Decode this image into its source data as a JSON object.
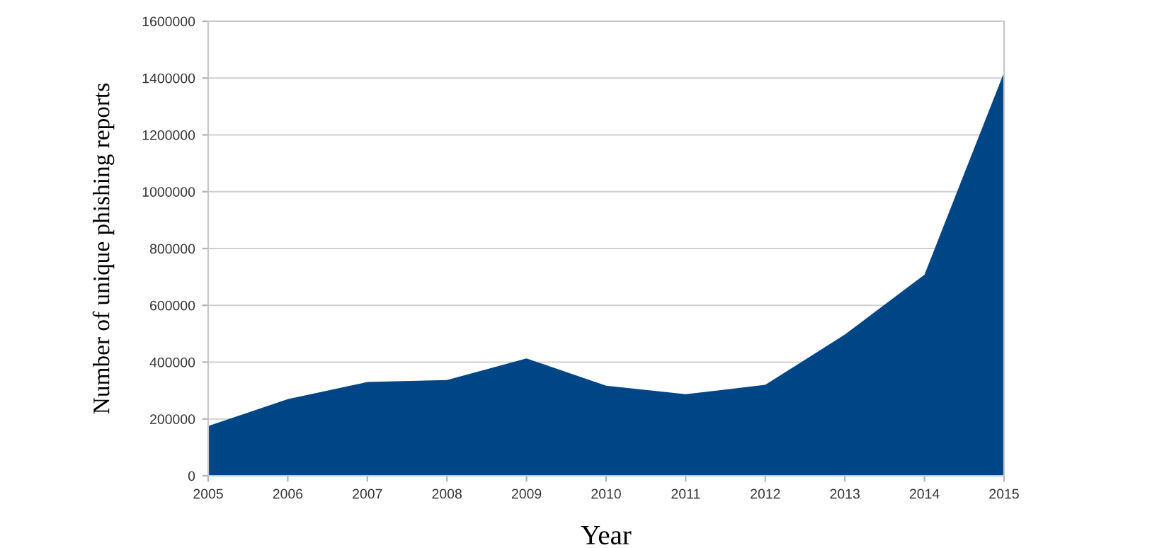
{
  "chart_data": {
    "type": "area",
    "xlabel": "Year",
    "ylabel": "Number of unique phishing reports",
    "x": [
      2005,
      2006,
      2007,
      2008,
      2009,
      2010,
      2011,
      2012,
      2013,
      2014,
      2015
    ],
    "series": [
      {
        "color": "#004586",
        "values": [
          175000,
          270000,
          330000,
          337000,
          413000,
          317000,
          287000,
          320000,
          497000,
          708000,
          1420000
        ]
      }
    ],
    "xlim": [
      2005,
      2015
    ],
    "xticks": [
      2005,
      2006,
      2007,
      2008,
      2009,
      2010,
      2011,
      2012,
      2013,
      2014,
      2015
    ],
    "ylim": [
      0,
      1600000
    ],
    "yticks": [
      0,
      200000,
      400000,
      600000,
      800000,
      1000000,
      1200000,
      1400000,
      1600000
    ],
    "grid": "y",
    "legend": false
  }
}
